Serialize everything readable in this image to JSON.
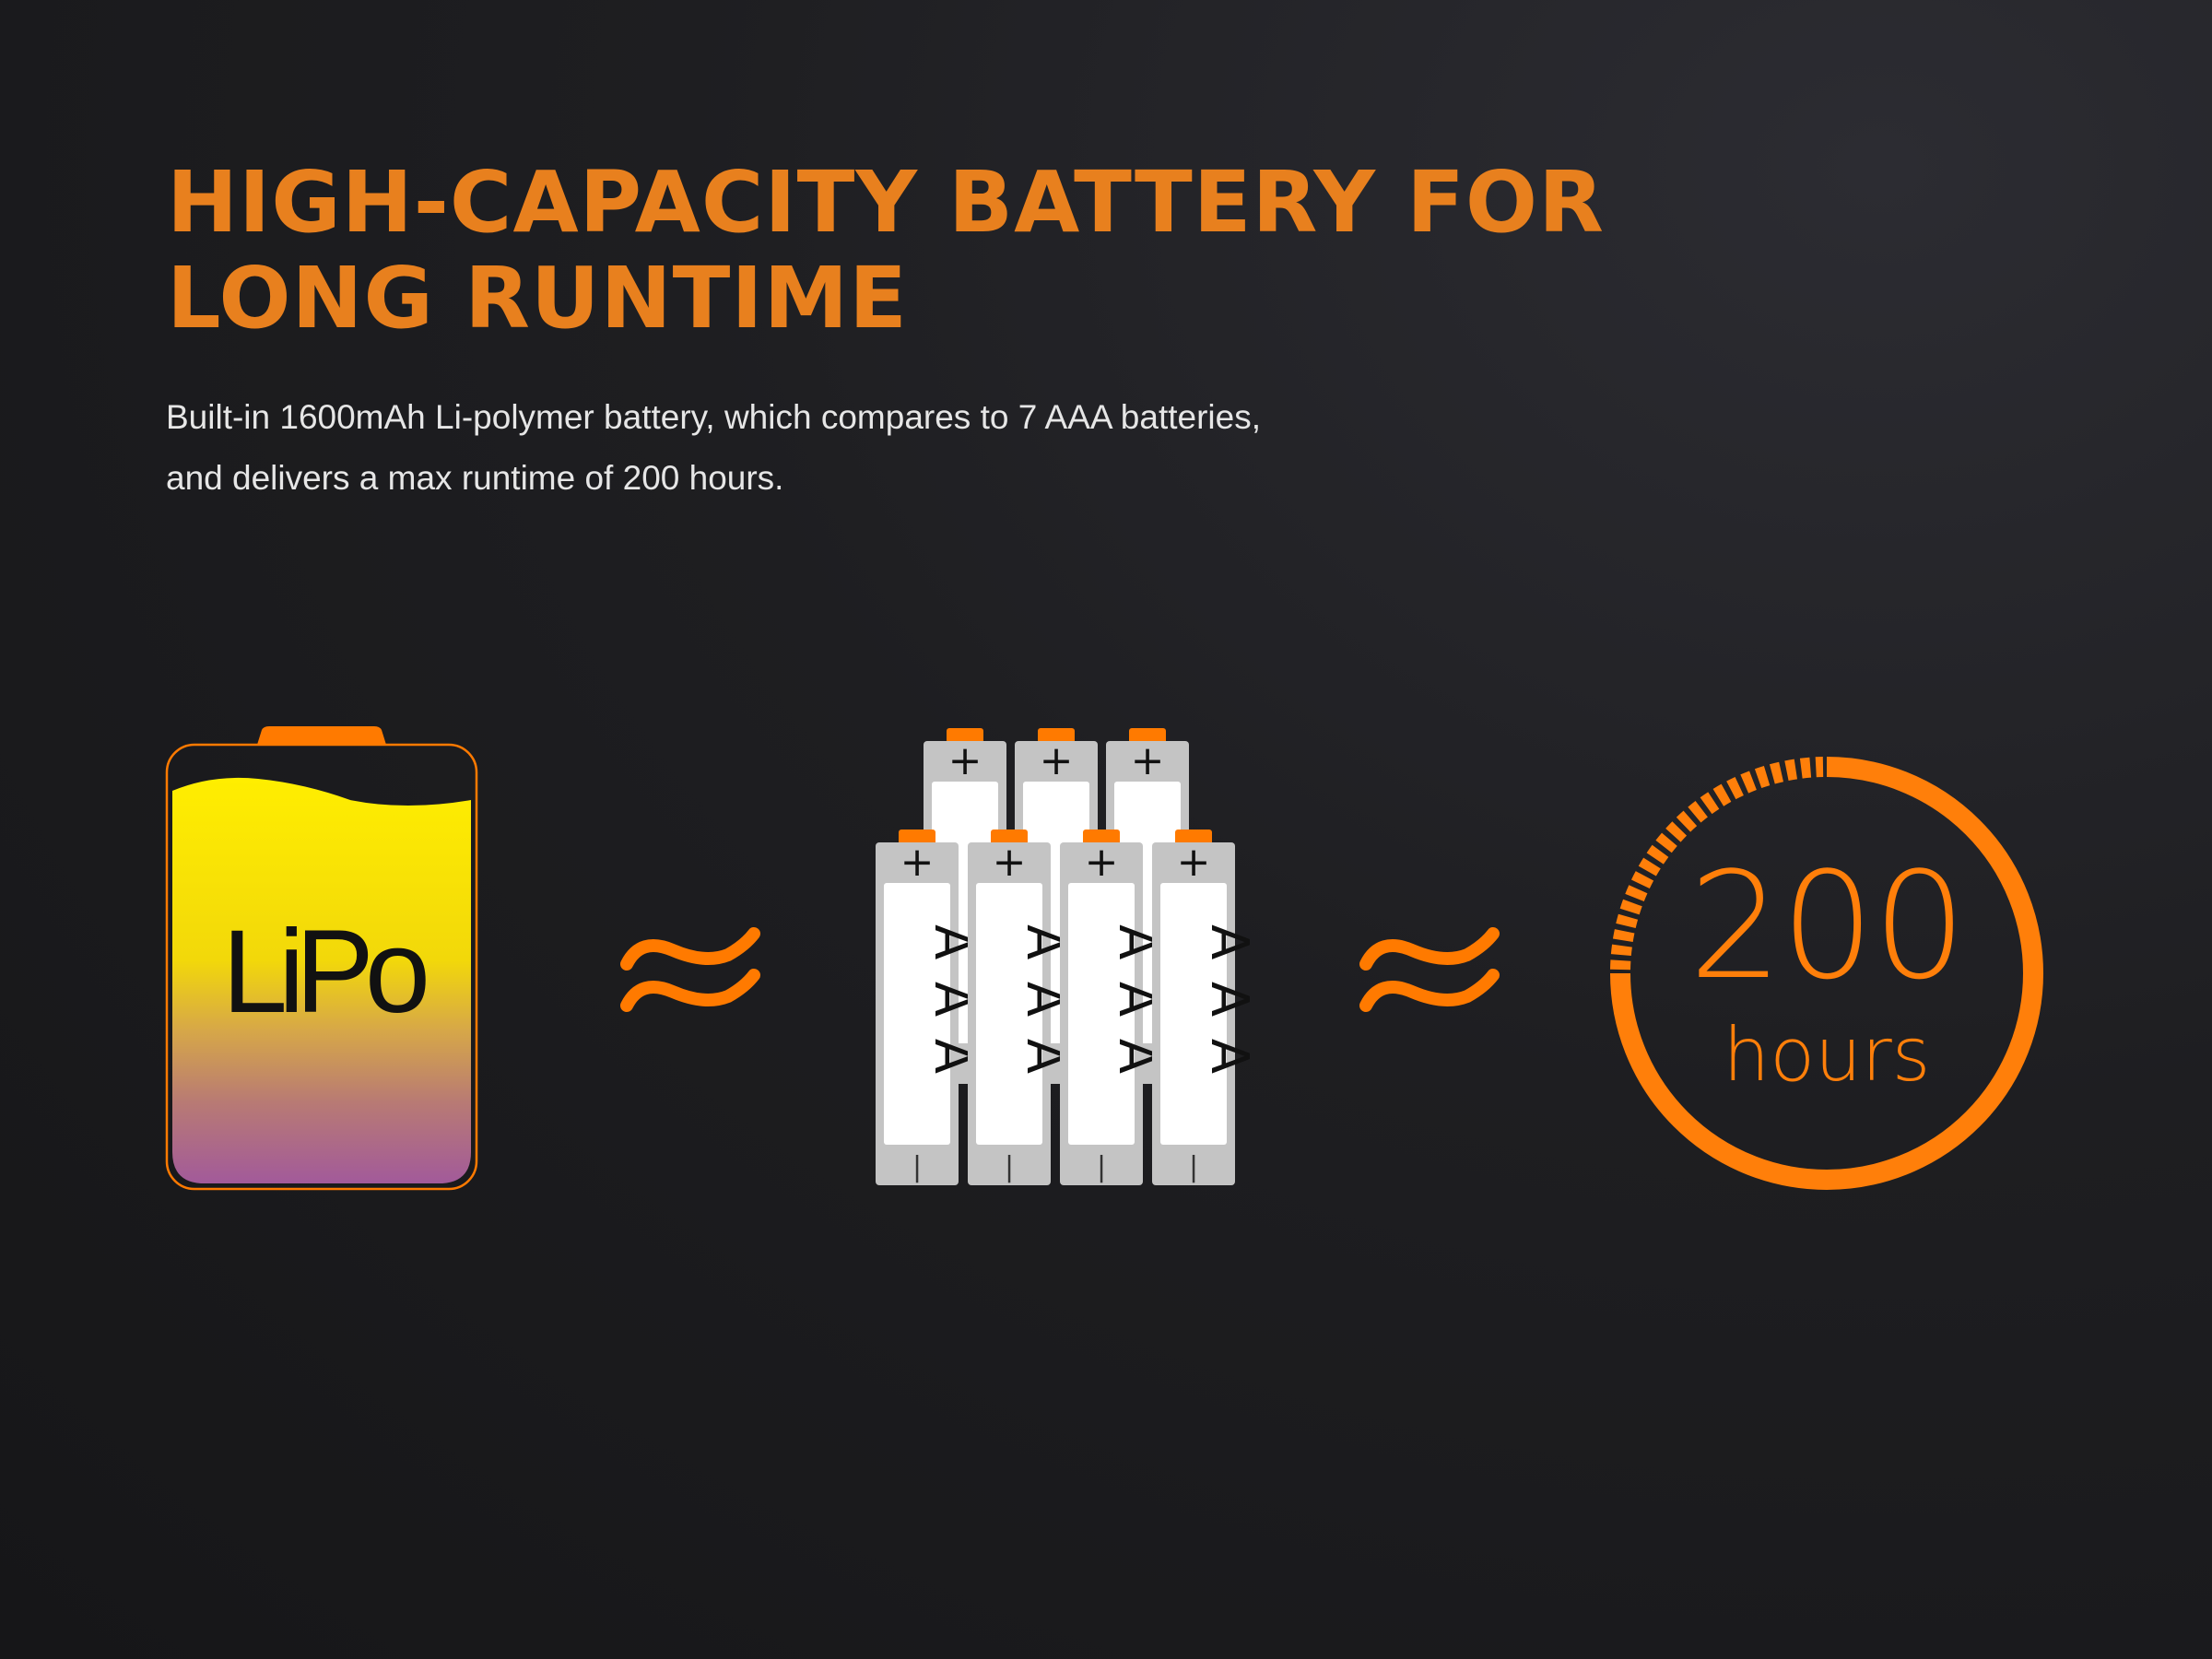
{
  "heading": {
    "line1": "HIGH-CAPACITY BATTERY FOR",
    "line2": "LONG RUNTIME"
  },
  "description": {
    "line1": "Built-in 1600mAh Li-polymer battery, which compares to 7 AAA batteries,",
    "line2": "and delivers a max runtime of 200 hours."
  },
  "lipo_battery": {
    "label": "LiPo"
  },
  "approx_symbol": "≈",
  "aaa_batteries": {
    "count": 7,
    "label": "AAA",
    "plus": "+",
    "minus": "|"
  },
  "runtime": {
    "value": "200",
    "unit": "hours"
  },
  "colors": {
    "accent": "#ff7f0a",
    "title": "#e8801e",
    "lipo_top": "#ffea00",
    "lipo_bottom": "#a25a9a",
    "aaa_body": "#c4c4c4"
  }
}
